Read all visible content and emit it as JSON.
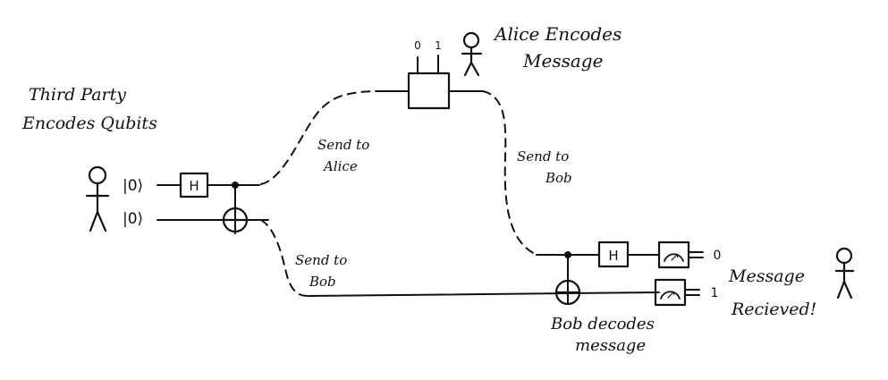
{
  "parties": {
    "third_party": "Third Party Encodes Qubits",
    "third_party_lines": [
      "Third Party",
      "Encodes Qubits"
    ],
    "alice": "Alice Encodes Message",
    "alice_lines": [
      "Alice Encodes",
      "Message"
    ],
    "bob_decodes": "Bob decodes message",
    "bob_decodes_lines": [
      "Bob decodes",
      "message"
    ],
    "received": "Message Recieved!",
    "received_lines": [
      "Message",
      "Recieved!"
    ]
  },
  "qubits": {
    "top_ket": "|0⟩",
    "bottom_ket": "|0⟩"
  },
  "gates": {
    "hadamard_1": "H",
    "hadamard_2": "H",
    "measure_1": "↗",
    "measure_2": "↗"
  },
  "channels": {
    "to_alice_lines": [
      "Send to",
      "Alice"
    ],
    "alice_to_bob_lines": [
      "Send to",
      "Bob"
    ],
    "to_bob_lines": [
      "Send to",
      "Bob"
    ]
  },
  "alice_box": {
    "bit_0": "0",
    "bit_1": "1"
  },
  "outputs": {
    "top": "0",
    "bottom": "1"
  }
}
